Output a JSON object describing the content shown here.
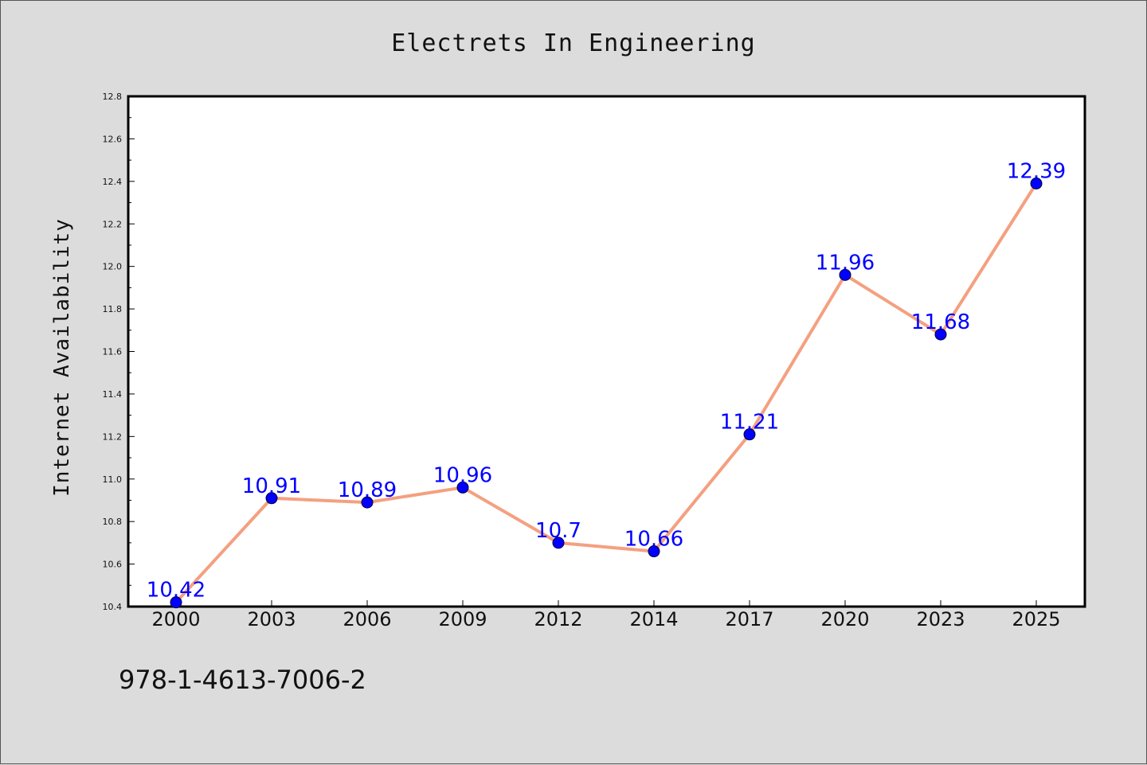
{
  "chart_data": {
    "type": "line",
    "title": "Electrets In Engineering",
    "xlabel": "",
    "ylabel": "Internet Availability",
    "categories": [
      "2000",
      "2003",
      "2006",
      "2009",
      "2012",
      "2014",
      "2017",
      "2020",
      "2023",
      "2025"
    ],
    "values": [
      10.42,
      10.91,
      10.89,
      10.96,
      10.7,
      10.66,
      11.21,
      11.96,
      11.68,
      12.39
    ],
    "data_labels": [
      "10.42",
      "10.91",
      "10.89",
      "10.96",
      "10.7",
      "10.66",
      "11.21",
      "11.96",
      "11.68",
      "12.39"
    ],
    "ylim": [
      10.4,
      12.8
    ],
    "yticks": [
      "10.4",
      "10.6",
      "10.8",
      "11.0",
      "11.2",
      "11.4",
      "11.6",
      "11.8",
      "12.0",
      "12.2",
      "12.4",
      "12.6",
      "12.8"
    ],
    "grid": false,
    "legend": "none",
    "colors": {
      "line": "#f4a080",
      "marker": "#0000ff",
      "marker_edge": "#000033",
      "data_label": "#0000ff",
      "background": "#dcdcdc",
      "plot_background": "#ffffff"
    }
  },
  "footnote": "978-1-4613-7006-2"
}
